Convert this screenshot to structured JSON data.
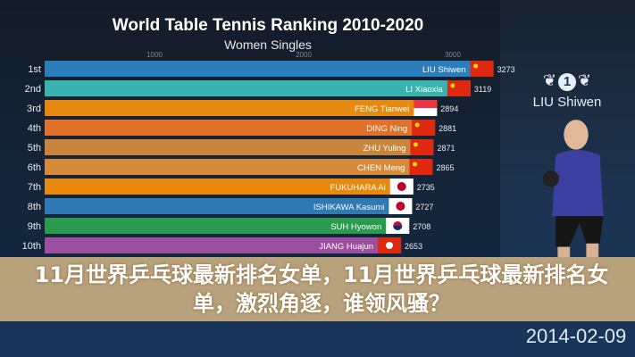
{
  "chart_data": {
    "type": "bar",
    "orientation": "horizontal",
    "title": "World Table Tennis Ranking 2010-2020",
    "subtitle": "Women Singles",
    "x_ticks": [
      1000,
      2000,
      3000
    ],
    "categories": [
      "1st",
      "2nd",
      "3rd",
      "4th",
      "5th",
      "6th",
      "7th",
      "8th",
      "9th",
      "10th"
    ],
    "names": [
      "LIU Shiwen",
      "LI Xiaoxia",
      "FENG Tianwei",
      "DING Ning",
      "ZHU Yuling",
      "CHEN Meng",
      "FUKUHARA Ai",
      "ISHIKAWA Kasumi",
      "SUH Hyowon",
      "JIANG Huajun"
    ],
    "countries": [
      "CHN",
      "CHN",
      "SGP",
      "CHN",
      "CHN",
      "CHN",
      "JPN",
      "JPN",
      "KOR",
      "HKG"
    ],
    "values": [
      3273,
      3119,
      2894,
      2881,
      2871,
      2865,
      2735,
      2727,
      2708,
      2653
    ],
    "colors": [
      "#2b7dbb",
      "#38b3b0",
      "#e8890f",
      "#e0702a",
      "#c9853c",
      "#d7893a",
      "#e8890f",
      "#2f79b5",
      "#2a9a4e",
      "#9c4f9e"
    ],
    "grid": false,
    "date": "2014-02-09",
    "leader": "LIU Shiwen",
    "leader_rank": "1"
  },
  "overlay": {
    "headline": "11月世界乒乓球最新排名女单，11月世界乒乓球最新排名女单，激烈角逐，谁领风骚？"
  }
}
